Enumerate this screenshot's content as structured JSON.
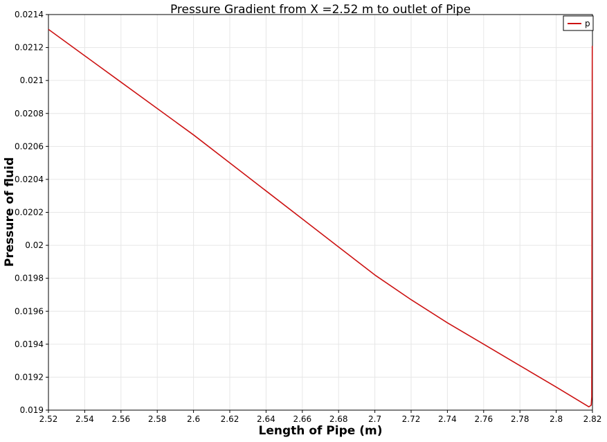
{
  "chart_data": {
    "type": "line",
    "title": "Pressure Gradient from X =2.52 m to outlet of Pipe",
    "xlabel": "Length of Pipe (m)",
    "ylabel": "Pressure of fluid",
    "xlim": [
      2.52,
      2.82
    ],
    "ylim": [
      0.019,
      0.0214
    ],
    "x_ticks": [
      "2.52",
      "2.54",
      "2.56",
      "2.58",
      "2.6",
      "2.62",
      "2.64",
      "2.66",
      "2.68",
      "2.7",
      "2.72",
      "2.74",
      "2.76",
      "2.78",
      "2.8",
      "2.82"
    ],
    "y_ticks": [
      "0.019",
      "0.0192",
      "0.0194",
      "0.0196",
      "0.0198",
      "0.02",
      "0.0202",
      "0.0204",
      "0.0206",
      "0.0208",
      "0.021",
      "0.0212",
      "0.0214"
    ],
    "grid": true,
    "legend_position": "top-right",
    "series": [
      {
        "name": "p",
        "color": "#cc1111",
        "x": [
          2.52,
          2.54,
          2.56,
          2.58,
          2.6,
          2.62,
          2.64,
          2.66,
          2.68,
          2.7,
          2.72,
          2.74,
          2.76,
          2.78,
          2.8,
          2.818,
          2.8193,
          2.8196,
          2.8198,
          2.8199
        ],
        "y": [
          0.02131,
          0.02115,
          0.02099,
          0.02083,
          0.02067,
          0.0205,
          0.02033,
          0.02016,
          0.01999,
          0.01982,
          0.01967,
          0.01953,
          0.0194,
          0.01927,
          0.01914,
          0.01902,
          0.01903,
          0.01908,
          0.0206,
          0.02121
        ]
      }
    ]
  }
}
